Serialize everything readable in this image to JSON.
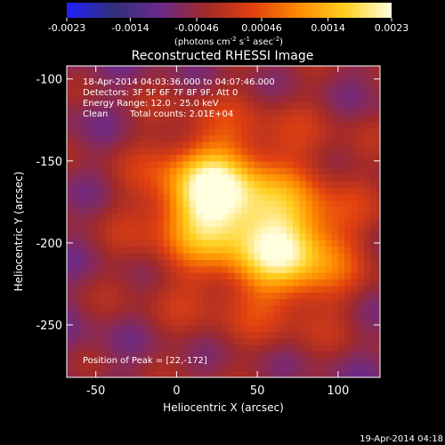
{
  "colors": {
    "background": "#000000",
    "foreground": "#ffffff",
    "colormap": [
      "#2020ff",
      "#30307a",
      "#6a2a8c",
      "#a12a2a",
      "#e04010",
      "#ff8a00",
      "#ffd020",
      "#ffffe0"
    ]
  },
  "colorbar": {
    "ticks": [
      "-0.0023",
      "-0.0014",
      "-0.00046",
      "0.00046",
      "0.0014",
      "0.0023"
    ],
    "tick_values": [
      -0.0023,
      -0.0014,
      -0.00046,
      0.00046,
      0.0014,
      0.0023
    ],
    "range": [
      -0.0023,
      0.0023
    ],
    "unit_main": "(photons cm",
    "unit_sup1": "-2",
    "unit_mid": " s",
    "unit_sup2": "-1",
    "unit_mid2": " asec",
    "unit_sup3": "-2",
    "unit_end": ")"
  },
  "chart_data": {
    "type": "heatmap",
    "title": "Reconstructed RHESSI Image",
    "xlabel": "Heliocentric X (arcsec)",
    "ylabel": "Heliocentric Y (arcsec)",
    "xlim": [
      -68,
      126
    ],
    "ylim": [
      -282,
      -92
    ],
    "xticks": [
      "-50",
      "0",
      "50",
      "100"
    ],
    "xtick_values": [
      -50,
      0,
      50,
      100
    ],
    "yticks": [
      "-100",
      "-150",
      "-200",
      "-250"
    ],
    "ytick_values": [
      -100,
      -150,
      -200,
      -250
    ],
    "sources": [
      {
        "x": 22,
        "y": -172,
        "peak": 0.0023
      },
      {
        "x": 70,
        "y": -203,
        "peak": 0.0019
      }
    ],
    "annotations": {
      "time": "18-Apr-2014 04:03:36.000 to 04:07:46.000",
      "detectors": "Detectors: 3F 5F 6F 7F 8F 9F, Att 0",
      "energy": "Energy Range: 12.0 - 25.0 keV",
      "method": "Clean",
      "counts": "Total counts: 2.01E+04",
      "peak": "Position of Peak = [22,-172]"
    }
  },
  "stamp": "19-Apr-2014 04:18"
}
